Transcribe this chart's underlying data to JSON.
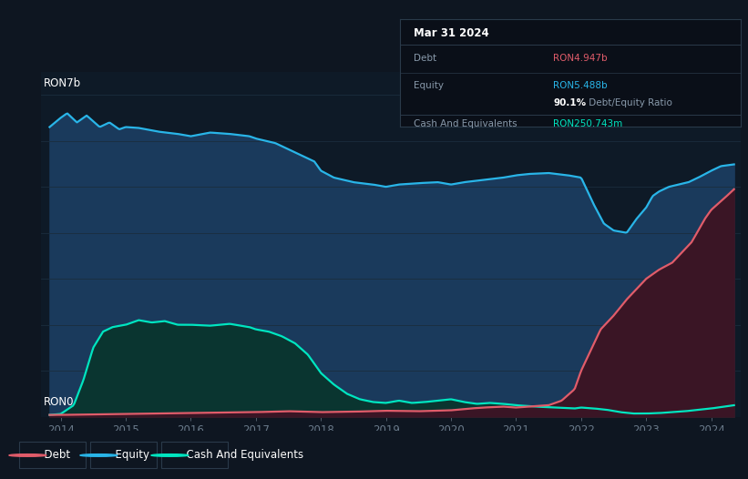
{
  "background_color": "#0e1621",
  "plot_bg_color": "#0e1a27",
  "title_label": "RON7b",
  "zero_label": "RON0",
  "x_ticks": [
    2014,
    2015,
    2016,
    2017,
    2018,
    2019,
    2020,
    2021,
    2022,
    2023,
    2024
  ],
  "ylim": [
    0,
    7.5
  ],
  "xlim": [
    2013.7,
    2024.45
  ],
  "tooltip": {
    "date": "Mar 31 2024",
    "debt_label": "Debt",
    "debt_value": "RON4.947b",
    "equity_label": "Equity",
    "equity_value": "RON5.488b",
    "ratio_value": "90.1% Debt/Equity Ratio",
    "cash_label": "Cash And Equivalents",
    "cash_value": "RON250.743m",
    "bg_color": "#0a0f18",
    "border_color": "#2a3a4a",
    "text_color": "#8899aa",
    "debt_color": "#e05c6a",
    "equity_color": "#29b5e8",
    "cash_color": "#00e5c0",
    "ratio_color": "#ffffff",
    "white": "#ffffff"
  },
  "legend": [
    {
      "label": "Debt",
      "color": "#e05c6a"
    },
    {
      "label": "Equity",
      "color": "#29b5e8"
    },
    {
      "label": "Cash And Equivalents",
      "color": "#00e5c0"
    }
  ],
  "equity_color": "#29b5e8",
  "equity_fill": "#1a3a5c",
  "debt_color": "#e05c6a",
  "debt_fill": "#3a1525",
  "cash_color": "#00e5c0",
  "cash_fill": "#0a3530",
  "grid_color": "#1a2d3d",
  "tick_color": "#6a7a8a",
  "legend_bg": "#0e1621",
  "legend_border": "#2a3a4a"
}
